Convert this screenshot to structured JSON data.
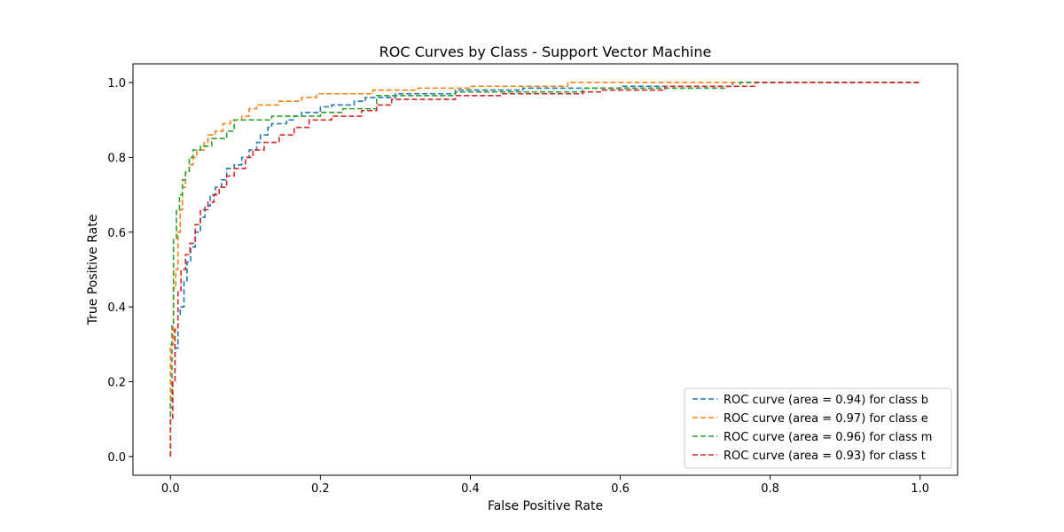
{
  "chart_data": {
    "type": "line",
    "title": "ROC Curves by Class - Support Vector Machine",
    "xlabel": "False Positive Rate",
    "ylabel": "True Positive Rate",
    "xlim": [
      -0.05,
      1.05
    ],
    "ylim": [
      -0.05,
      1.05
    ],
    "x_ticks": [
      0.0,
      0.2,
      0.4,
      0.6,
      0.8,
      1.0
    ],
    "x_tick_labels": [
      "0.0",
      "0.2",
      "0.4",
      "0.6",
      "0.8",
      "1.0"
    ],
    "y_ticks": [
      0.0,
      0.2,
      0.4,
      0.6,
      0.8,
      1.0
    ],
    "y_tick_labels": [
      "0.0",
      "0.2",
      "0.4",
      "0.6",
      "0.8",
      "1.0"
    ],
    "grid": false,
    "legend_position": "lower-right",
    "line_style": "dashed",
    "series": [
      {
        "name": "ROC curve (area = 0.94) for class b",
        "color": "#1f77b4",
        "points": [
          [
            0.0,
            0.0
          ],
          [
            0.0,
            0.13
          ],
          [
            0.003,
            0.13
          ],
          [
            0.003,
            0.2
          ],
          [
            0.006,
            0.2
          ],
          [
            0.006,
            0.29
          ],
          [
            0.01,
            0.29
          ],
          [
            0.01,
            0.38
          ],
          [
            0.013,
            0.38
          ],
          [
            0.013,
            0.4
          ],
          [
            0.018,
            0.4
          ],
          [
            0.018,
            0.47
          ],
          [
            0.022,
            0.47
          ],
          [
            0.022,
            0.52
          ],
          [
            0.027,
            0.52
          ],
          [
            0.027,
            0.56
          ],
          [
            0.033,
            0.56
          ],
          [
            0.033,
            0.6
          ],
          [
            0.04,
            0.6
          ],
          [
            0.04,
            0.64
          ],
          [
            0.046,
            0.64
          ],
          [
            0.046,
            0.67
          ],
          [
            0.053,
            0.67
          ],
          [
            0.053,
            0.7
          ],
          [
            0.06,
            0.7
          ],
          [
            0.06,
            0.72
          ],
          [
            0.068,
            0.72
          ],
          [
            0.068,
            0.74
          ],
          [
            0.075,
            0.74
          ],
          [
            0.075,
            0.77
          ],
          [
            0.085,
            0.77
          ],
          [
            0.085,
            0.78
          ],
          [
            0.095,
            0.78
          ],
          [
            0.095,
            0.8
          ],
          [
            0.105,
            0.8
          ],
          [
            0.105,
            0.82
          ],
          [
            0.115,
            0.82
          ],
          [
            0.115,
            0.84
          ],
          [
            0.12,
            0.84
          ],
          [
            0.12,
            0.86
          ],
          [
            0.13,
            0.86
          ],
          [
            0.13,
            0.88
          ],
          [
            0.135,
            0.88
          ],
          [
            0.135,
            0.89
          ],
          [
            0.155,
            0.89
          ],
          [
            0.155,
            0.9
          ],
          [
            0.165,
            0.9
          ],
          [
            0.165,
            0.91
          ],
          [
            0.175,
            0.91
          ],
          [
            0.175,
            0.92
          ],
          [
            0.2,
            0.92
          ],
          [
            0.2,
            0.935
          ],
          [
            0.215,
            0.935
          ],
          [
            0.215,
            0.94
          ],
          [
            0.245,
            0.94
          ],
          [
            0.245,
            0.95
          ],
          [
            0.26,
            0.95
          ],
          [
            0.26,
            0.96
          ],
          [
            0.3,
            0.96
          ],
          [
            0.3,
            0.97
          ],
          [
            0.38,
            0.97
          ],
          [
            0.38,
            0.98
          ],
          [
            0.47,
            0.98
          ],
          [
            0.47,
            0.985
          ],
          [
            0.6,
            0.985
          ],
          [
            0.6,
            0.99
          ],
          [
            0.75,
            0.99
          ],
          [
            0.75,
            1.0
          ],
          [
            1.0,
            1.0
          ]
        ]
      },
      {
        "name": "ROC curve (area = 0.97) for class e",
        "color": "#ff7f0e",
        "points": [
          [
            0.0,
            0.0
          ],
          [
            0.0,
            0.3
          ],
          [
            0.004,
            0.3
          ],
          [
            0.004,
            0.45
          ],
          [
            0.007,
            0.45
          ],
          [
            0.007,
            0.5
          ],
          [
            0.01,
            0.5
          ],
          [
            0.01,
            0.6
          ],
          [
            0.013,
            0.6
          ],
          [
            0.013,
            0.66
          ],
          [
            0.016,
            0.66
          ],
          [
            0.016,
            0.72
          ],
          [
            0.02,
            0.72
          ],
          [
            0.02,
            0.76
          ],
          [
            0.025,
            0.76
          ],
          [
            0.025,
            0.78
          ],
          [
            0.03,
            0.78
          ],
          [
            0.03,
            0.8
          ],
          [
            0.035,
            0.8
          ],
          [
            0.035,
            0.82
          ],
          [
            0.045,
            0.82
          ],
          [
            0.045,
            0.84
          ],
          [
            0.05,
            0.84
          ],
          [
            0.05,
            0.86
          ],
          [
            0.06,
            0.86
          ],
          [
            0.06,
            0.87
          ],
          [
            0.07,
            0.87
          ],
          [
            0.07,
            0.89
          ],
          [
            0.08,
            0.89
          ],
          [
            0.08,
            0.9
          ],
          [
            0.095,
            0.9
          ],
          [
            0.095,
            0.91
          ],
          [
            0.105,
            0.91
          ],
          [
            0.105,
            0.93
          ],
          [
            0.115,
            0.93
          ],
          [
            0.115,
            0.94
          ],
          [
            0.145,
            0.94
          ],
          [
            0.145,
            0.95
          ],
          [
            0.175,
            0.95
          ],
          [
            0.175,
            0.96
          ],
          [
            0.195,
            0.96
          ],
          [
            0.195,
            0.97
          ],
          [
            0.27,
            0.97
          ],
          [
            0.27,
            0.98
          ],
          [
            0.33,
            0.98
          ],
          [
            0.33,
            0.985
          ],
          [
            0.4,
            0.985
          ],
          [
            0.4,
            0.99
          ],
          [
            0.53,
            0.99
          ],
          [
            0.53,
            1.0
          ],
          [
            1.0,
            1.0
          ]
        ]
      },
      {
        "name": "ROC curve (area = 0.96) for class m",
        "color": "#2ca02c",
        "points": [
          [
            0.0,
            0.0
          ],
          [
            0.0,
            0.15
          ],
          [
            0.002,
            0.15
          ],
          [
            0.002,
            0.35
          ],
          [
            0.004,
            0.35
          ],
          [
            0.004,
            0.58
          ],
          [
            0.008,
            0.58
          ],
          [
            0.008,
            0.66
          ],
          [
            0.012,
            0.66
          ],
          [
            0.012,
            0.7
          ],
          [
            0.016,
            0.7
          ],
          [
            0.016,
            0.74
          ],
          [
            0.02,
            0.74
          ],
          [
            0.02,
            0.76
          ],
          [
            0.025,
            0.76
          ],
          [
            0.025,
            0.8
          ],
          [
            0.03,
            0.8
          ],
          [
            0.03,
            0.82
          ],
          [
            0.04,
            0.82
          ],
          [
            0.04,
            0.83
          ],
          [
            0.055,
            0.83
          ],
          [
            0.055,
            0.85
          ],
          [
            0.075,
            0.85
          ],
          [
            0.075,
            0.87
          ],
          [
            0.085,
            0.87
          ],
          [
            0.085,
            0.9
          ],
          [
            0.135,
            0.9
          ],
          [
            0.135,
            0.91
          ],
          [
            0.2,
            0.91
          ],
          [
            0.2,
            0.92
          ],
          [
            0.23,
            0.92
          ],
          [
            0.23,
            0.93
          ],
          [
            0.275,
            0.93
          ],
          [
            0.275,
            0.965
          ],
          [
            0.38,
            0.965
          ],
          [
            0.38,
            0.975
          ],
          [
            0.55,
            0.975
          ],
          [
            0.55,
            0.985
          ],
          [
            0.74,
            0.985
          ],
          [
            0.74,
            0.99
          ],
          [
            0.76,
            0.99
          ],
          [
            0.76,
            1.0
          ],
          [
            1.0,
            1.0
          ]
        ]
      },
      {
        "name": "ROC curve (area = 0.93) for class t",
        "color": "#d62728",
        "points": [
          [
            0.0,
            0.0
          ],
          [
            0.0,
            0.1
          ],
          [
            0.003,
            0.1
          ],
          [
            0.003,
            0.2
          ],
          [
            0.006,
            0.2
          ],
          [
            0.006,
            0.34
          ],
          [
            0.01,
            0.34
          ],
          [
            0.01,
            0.44
          ],
          [
            0.014,
            0.44
          ],
          [
            0.014,
            0.5
          ],
          [
            0.02,
            0.5
          ],
          [
            0.02,
            0.54
          ],
          [
            0.026,
            0.54
          ],
          [
            0.026,
            0.57
          ],
          [
            0.033,
            0.57
          ],
          [
            0.033,
            0.62
          ],
          [
            0.04,
            0.62
          ],
          [
            0.04,
            0.66
          ],
          [
            0.05,
            0.66
          ],
          [
            0.05,
            0.68
          ],
          [
            0.058,
            0.68
          ],
          [
            0.058,
            0.7
          ],
          [
            0.065,
            0.7
          ],
          [
            0.065,
            0.72
          ],
          [
            0.075,
            0.72
          ],
          [
            0.075,
            0.75
          ],
          [
            0.085,
            0.75
          ],
          [
            0.085,
            0.77
          ],
          [
            0.1,
            0.77
          ],
          [
            0.1,
            0.8
          ],
          [
            0.11,
            0.8
          ],
          [
            0.11,
            0.82
          ],
          [
            0.125,
            0.82
          ],
          [
            0.125,
            0.84
          ],
          [
            0.145,
            0.84
          ],
          [
            0.145,
            0.86
          ],
          [
            0.165,
            0.86
          ],
          [
            0.165,
            0.88
          ],
          [
            0.185,
            0.88
          ],
          [
            0.185,
            0.9
          ],
          [
            0.215,
            0.9
          ],
          [
            0.215,
            0.91
          ],
          [
            0.255,
            0.91
          ],
          [
            0.255,
            0.925
          ],
          [
            0.275,
            0.925
          ],
          [
            0.275,
            0.94
          ],
          [
            0.295,
            0.94
          ],
          [
            0.295,
            0.955
          ],
          [
            0.38,
            0.955
          ],
          [
            0.38,
            0.965
          ],
          [
            0.44,
            0.965
          ],
          [
            0.44,
            0.97
          ],
          [
            0.55,
            0.97
          ],
          [
            0.55,
            0.975
          ],
          [
            0.575,
            0.975
          ],
          [
            0.575,
            0.98
          ],
          [
            0.66,
            0.98
          ],
          [
            0.66,
            0.99
          ],
          [
            0.78,
            0.99
          ],
          [
            0.78,
            1.0
          ],
          [
            1.0,
            1.0
          ]
        ]
      }
    ]
  }
}
